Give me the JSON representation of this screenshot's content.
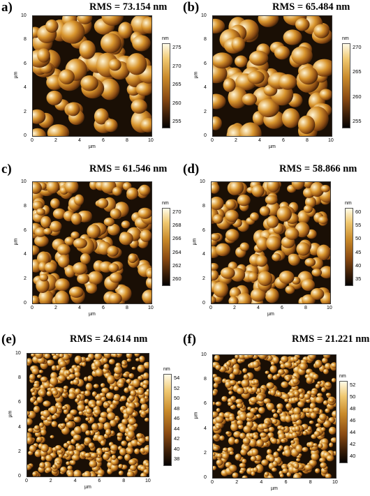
{
  "panels": [
    {
      "label": "a)",
      "rms": "RMS = 73.154 nm",
      "x_ticks": [
        "0",
        "2",
        "4",
        "6",
        "8",
        "10"
      ],
      "y_ticks": [
        "0",
        "2",
        "4",
        "6",
        "8",
        "10"
      ],
      "axis_unit": "µm",
      "cbar_unit": "nm",
      "cbar_ticks": [
        "275",
        "270",
        "265",
        "260",
        "255"
      ],
      "grain_size": "large",
      "colors": {
        "dark": "#1a0f05",
        "mid": "#8a4a12",
        "light": "#fff6d8"
      }
    },
    {
      "label": "(b)",
      "rms": "RMS = 65.484 nm",
      "x_ticks": [
        "0",
        "2",
        "4",
        "6",
        "8",
        "10"
      ],
      "y_ticks": [
        "0",
        "2",
        "4",
        "6",
        "8",
        "10"
      ],
      "axis_unit": "µm",
      "cbar_unit": "nm",
      "cbar_ticks": [
        "270",
        "265",
        "260",
        "255"
      ],
      "grain_size": "large",
      "colors": {
        "dark": "#1a0f05",
        "mid": "#8a4a12",
        "light": "#fff6d8"
      }
    },
    {
      "label": "c)",
      "rms": "RMS = 61.546 nm",
      "x_ticks": [
        "0",
        "2",
        "4",
        "6",
        "8",
        "10"
      ],
      "y_ticks": [
        "0",
        "2",
        "4",
        "6",
        "8",
        "10"
      ],
      "axis_unit": "µm",
      "cbar_unit": "nm",
      "cbar_ticks": [
        "270",
        "268",
        "266",
        "264",
        "262",
        "260"
      ],
      "grain_size": "medium",
      "colors": {
        "dark": "#1a0f05",
        "mid": "#8a4a12",
        "light": "#fff6d8"
      }
    },
    {
      "label": "(d)",
      "rms": "RMS = 58.866 nm",
      "x_ticks": [
        "0",
        "2",
        "4",
        "6",
        "8",
        "10"
      ],
      "y_ticks": [
        "0",
        "2",
        "4",
        "6",
        "8",
        "10"
      ],
      "axis_unit": "µm",
      "cbar_unit": "nm",
      "cbar_ticks": [
        "60",
        "55",
        "50",
        "45",
        "40",
        "35"
      ],
      "grain_size": "medium",
      "colors": {
        "dark": "#1a0f05",
        "mid": "#8a4a12",
        "light": "#fff6d8"
      }
    },
    {
      "label": "(e)",
      "rms": "RMS = 24.614 nm",
      "x_ticks": [
        "0",
        "2",
        "4",
        "6",
        "8",
        "10"
      ],
      "y_ticks": [
        "0",
        "2",
        "4",
        "6",
        "8",
        "10"
      ],
      "axis_unit": "µm",
      "cbar_unit": "nm",
      "cbar_ticks": [
        "54",
        "52",
        "50",
        "48",
        "46",
        "44",
        "42",
        "40",
        "38"
      ],
      "grain_size": "small",
      "colors": {
        "dark": "#1a0f05",
        "mid": "#8a4a12",
        "light": "#fff6d8"
      }
    },
    {
      "label": "(f)",
      "rms": "RMS = 21.221 nm",
      "x_ticks": [
        "0",
        "2",
        "4",
        "6",
        "8",
        "10"
      ],
      "y_ticks": [
        "0",
        "2",
        "4",
        "6",
        "8",
        "10"
      ],
      "axis_unit": "µm",
      "cbar_unit": "nm",
      "cbar_ticks": [
        "52",
        "50",
        "48",
        "46",
        "44",
        "42",
        "40"
      ],
      "grain_size": "small",
      "colors": {
        "dark": "#1a0f05",
        "mid": "#8a4a12",
        "light": "#fff6d8"
      }
    }
  ]
}
